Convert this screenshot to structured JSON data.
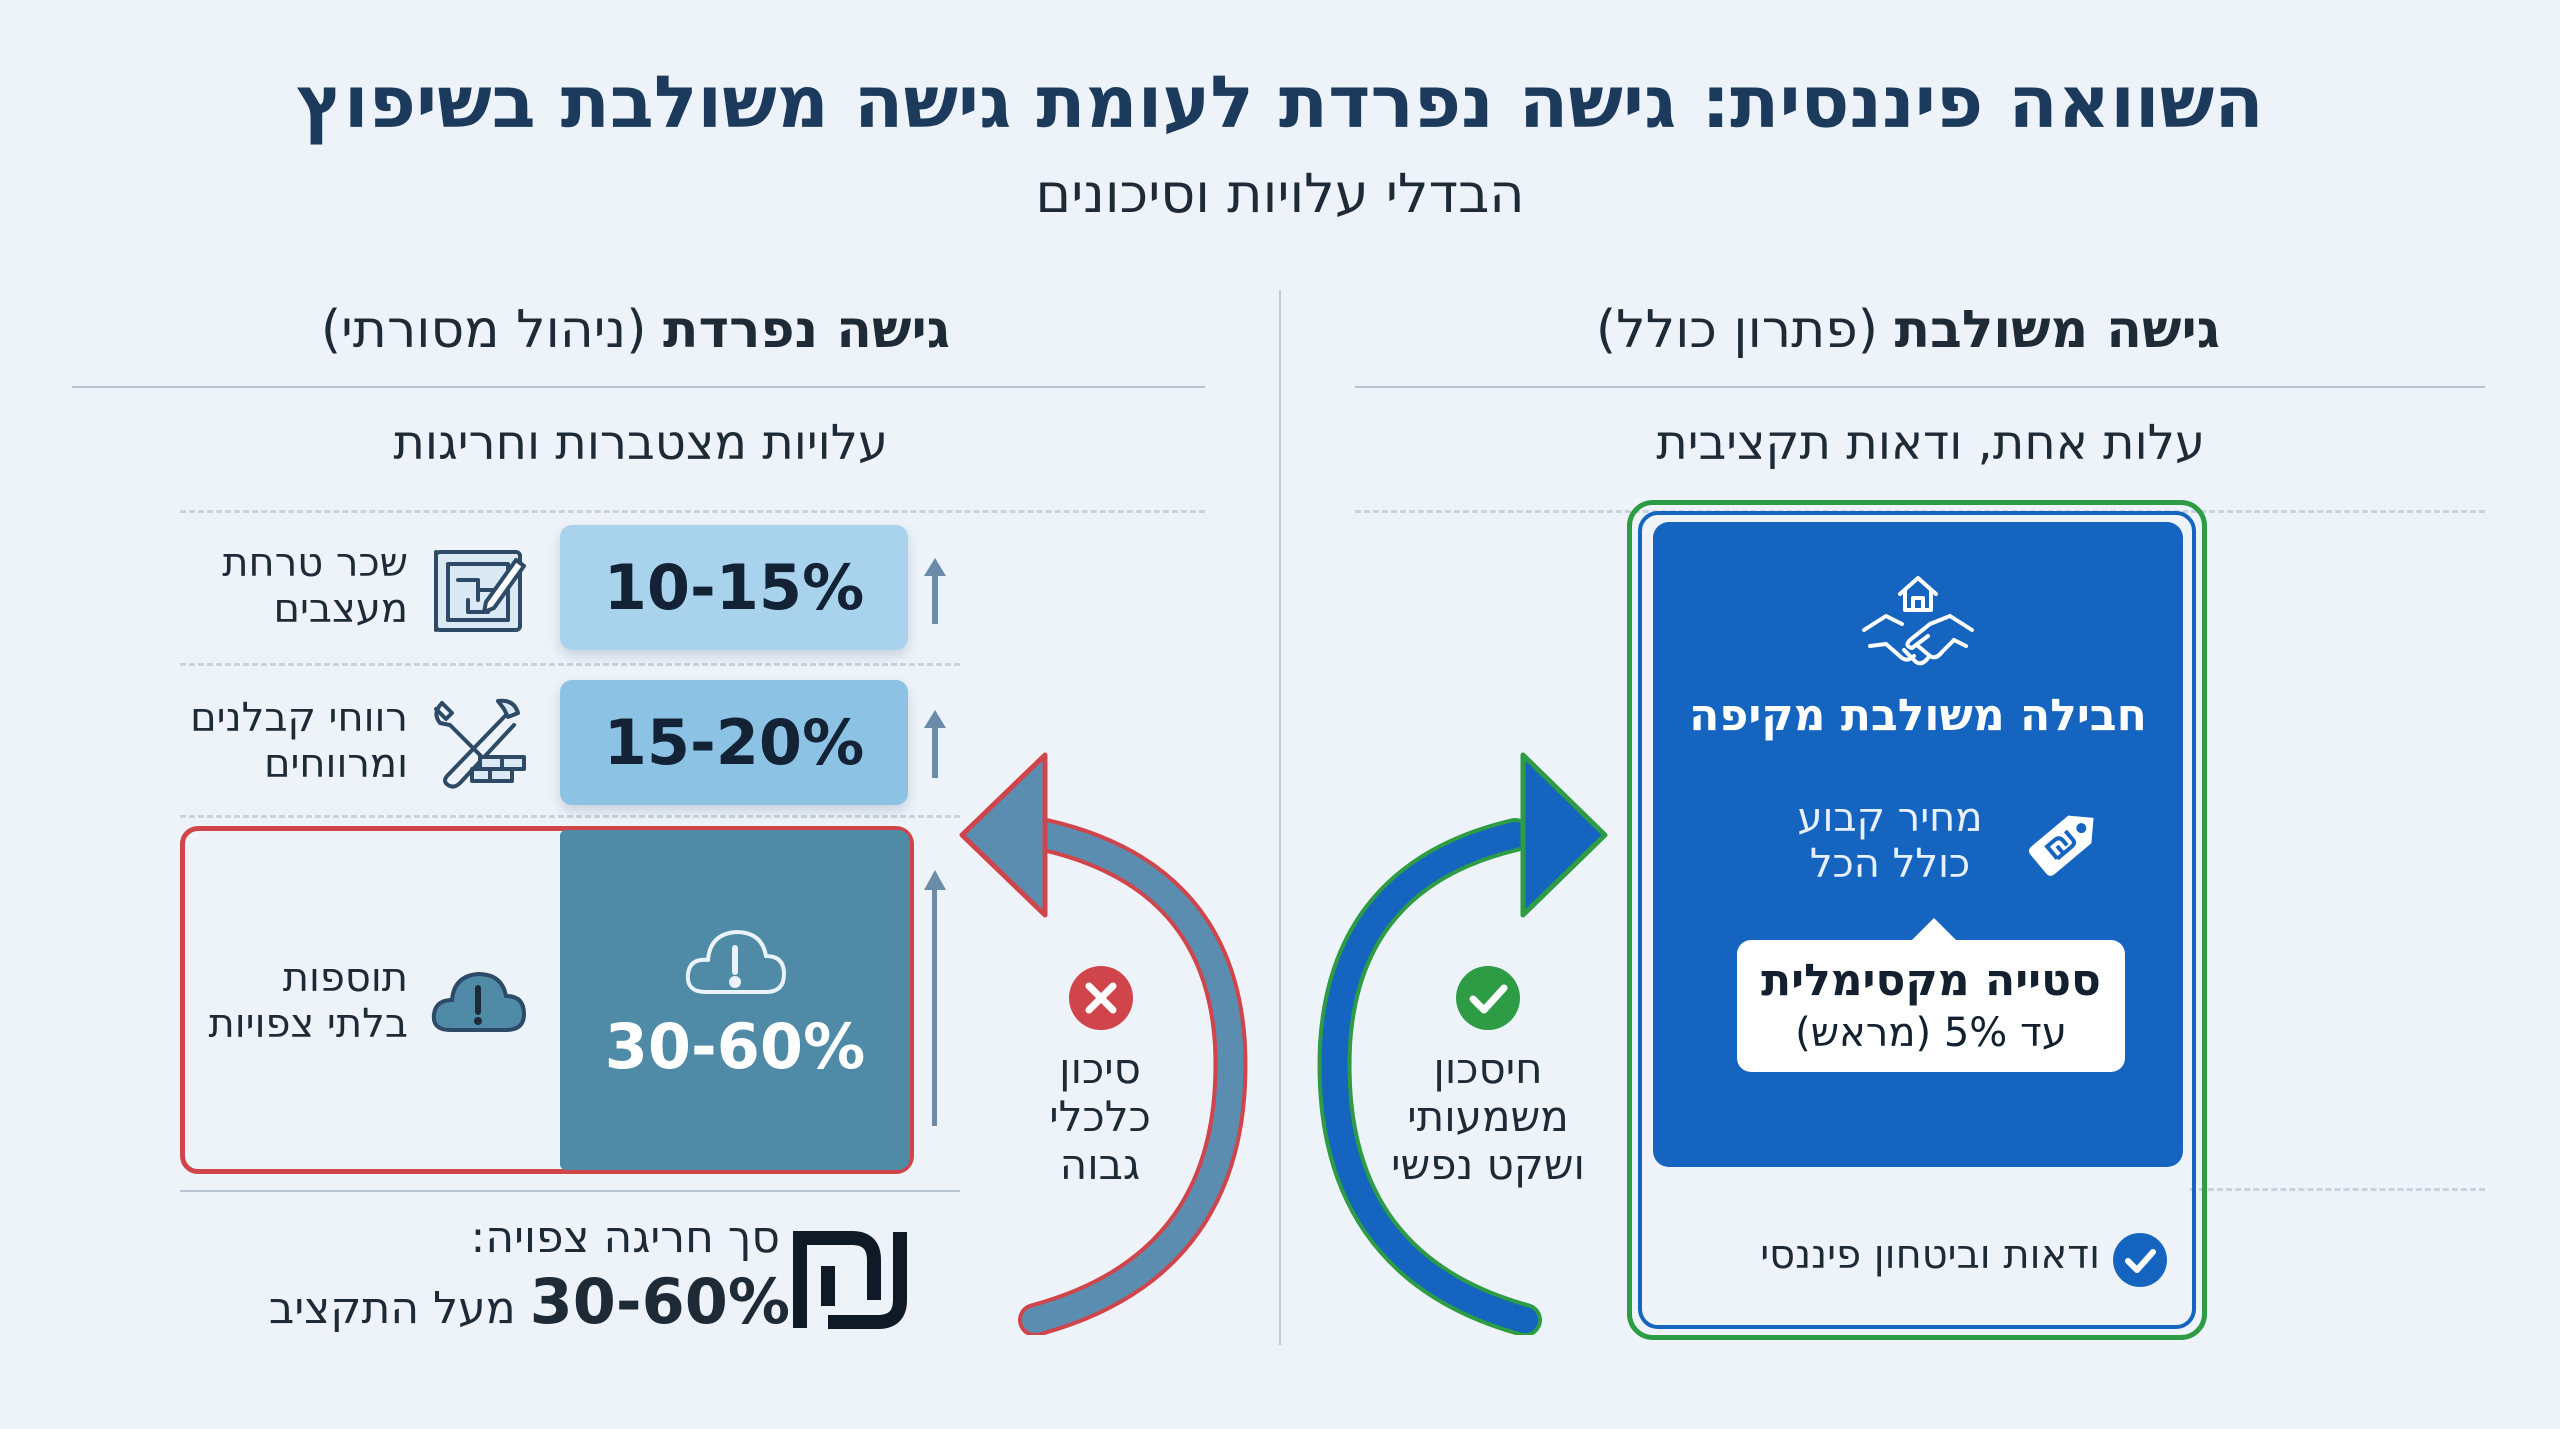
{
  "title": "השוואה פיננסית: גישה נפרדת לעומת גישה משולבת בשיפוץ",
  "subtitle": "הבדלי עלויות וסיכונים",
  "left_column": {
    "heading_bold": "גישה נפרדת",
    "heading_paren": "(ניהול מסורתי)",
    "subheading": "עלויות מצטברות וחריגות",
    "rows": [
      {
        "label_line1": "שכר טרחת",
        "label_line2": "מעצבים",
        "value": "10-15%",
        "icon": "blueprint-pencil-icon"
      },
      {
        "label_line1": "רווחי קבלנים",
        "label_line2": "ומרווחים",
        "value": "15-20%",
        "icon": "wrench-bricks-icon"
      },
      {
        "label_line1": "תוספות",
        "label_line2": "בלתי צפויות",
        "value": "30-60%",
        "icon": "cloud-alert-icon"
      }
    ],
    "risk": {
      "line1": "סיכון",
      "line2": "כלכלי",
      "line3": "גבוה"
    },
    "footer": {
      "label": "סך חריגה צפויה:",
      "value": "30-60%",
      "suffix": "מעל התקציב",
      "icon": "shekel-icon"
    }
  },
  "right_column": {
    "heading_bold": "גישה משולבת",
    "heading_paren": "(פתרון כולל)",
    "subheading": "עלות אחת, ודאות תקציבית",
    "package": {
      "title": "חבילה משולבת מקיפה",
      "price_line1": "מחיר קבוע",
      "price_line2": "כולל הכל",
      "callout_title": "סטייה מקסימלית",
      "callout_sub": "עד 5% (מראש)"
    },
    "benefit": {
      "line1": "חיסכון",
      "line2": "משמעותי",
      "line3": "ושקט נפשי"
    },
    "certainty": "ודאות וביטחון פיננסי"
  },
  "colors": {
    "background": "#eef3f9",
    "title": "#1b3a5c",
    "bar_light": "#a9d3ec",
    "bar_mid": "#8cc2e3",
    "bar_dark": "#4f8aa6",
    "risk_red": "#d0454c",
    "package_blue": "#1565c0",
    "success_green": "#2e9b45"
  }
}
